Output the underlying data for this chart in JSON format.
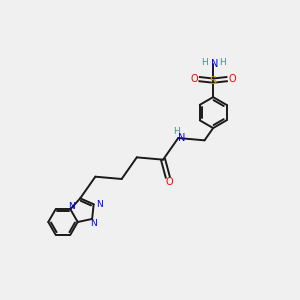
{
  "bg_color": "#f0f0f0",
  "bond_color": "#1a1a1a",
  "N_color": "#0000ff",
  "O_color": "#ff0000",
  "S_color": "#ccaa00",
  "H_color": "#4a9090",
  "figsize": [
    3.0,
    3.0
  ],
  "dpi": 100,
  "xlim": [
    0,
    10
  ],
  "ylim": [
    0,
    10
  ]
}
